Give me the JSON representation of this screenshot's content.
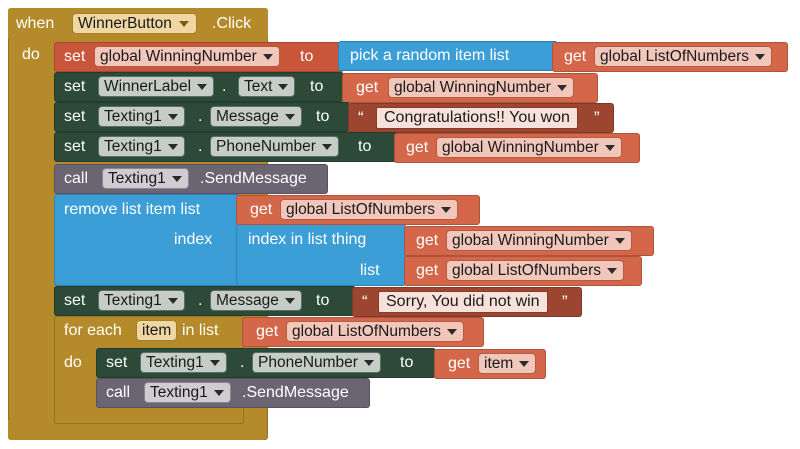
{
  "event": {
    "when": "when",
    "component": "WinnerButton",
    "event_name": ".Click",
    "do": "do"
  },
  "stmt1": {
    "set": "set",
    "var": "global WinningNumber",
    "to": "to",
    "pick": "pick a random item  list",
    "get": "get",
    "get_var": "global ListOfNumbers"
  },
  "stmt2": {
    "set": "set",
    "component": "WinnerLabel",
    "dot": ".",
    "property": "Text",
    "to": "to",
    "get": "get",
    "get_var": "global WinningNumber"
  },
  "stmt3": {
    "set": "set",
    "component": "Texting1",
    "dot": ".",
    "property": "Message",
    "to": "to",
    "open_quote": "“",
    "text": "Congratulations!! You won",
    "close_quote": "”"
  },
  "stmt4": {
    "set": "set",
    "component": "Texting1",
    "dot": ".",
    "property": "PhoneNumber",
    "to": "to",
    "get": "get",
    "get_var": "global WinningNumber"
  },
  "stmt5": {
    "call": "call",
    "component": "Texting1",
    "method": ".SendMessage"
  },
  "stmt6": {
    "remove": "remove list item  list",
    "get": "get",
    "get_var": "global ListOfNumbers",
    "index": "index",
    "index_in_list": "index in list  thing",
    "get2": "get",
    "get_var2": "global WinningNumber",
    "list": "list",
    "get3": "get",
    "get_var3": "global ListOfNumbers"
  },
  "stmt7": {
    "set": "set",
    "component": "Texting1",
    "dot": ".",
    "property": "Message",
    "to": "to",
    "open_quote": "“",
    "text": "Sorry, You did not win",
    "close_quote": "”"
  },
  "stmt8": {
    "for_each": "for each",
    "item": "item",
    "in_list": "in list",
    "get": "get",
    "get_var": "global ListOfNumbers",
    "do": "do",
    "inner_set": "set",
    "inner_component": "Texting1",
    "inner_dot": ".",
    "inner_property": "PhoneNumber",
    "inner_to": "to",
    "inner_get": "get",
    "inner_get_var": "item",
    "inner_call": "call",
    "inner_call_component": "Texting1",
    "inner_method": ".SendMessage"
  },
  "colors": {
    "event": "#b48a2b",
    "set_variable": "#c9563b",
    "set_component": "#2c4a37",
    "call": "#6b6472",
    "list": "#3c9ed6",
    "get": "#d4674a",
    "text": "#9c4631"
  }
}
